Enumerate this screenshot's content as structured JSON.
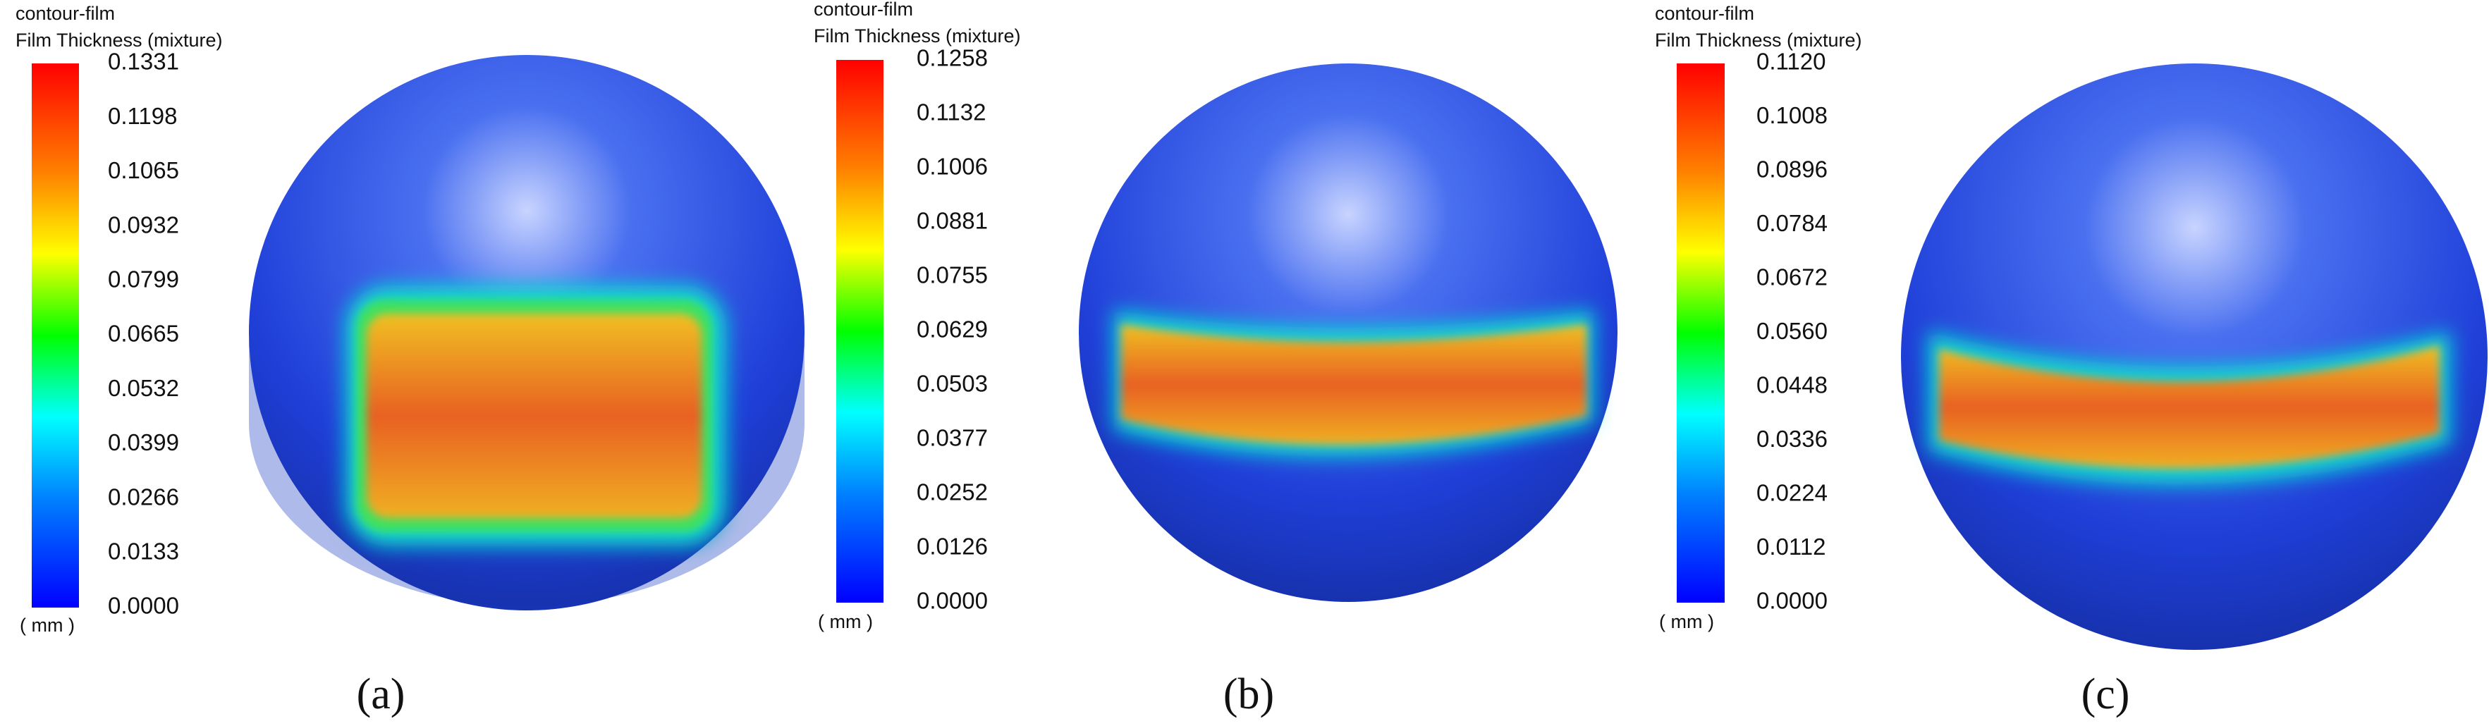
{
  "panels": [
    {
      "title": [
        "contour-film",
        "Film Thickness (mixture)"
      ],
      "ticks": [
        "0.1331",
        "0.1198",
        "0.1065",
        "0.0932",
        "0.0799",
        "0.0665",
        "0.0532",
        "0.0399",
        "0.0266",
        "0.0133",
        "0.0000"
      ],
      "unit": "( mm )",
      "label": "(a)"
    },
    {
      "title": [
        "contour-film",
        "Film Thickness (mixture)"
      ],
      "ticks": [
        "0.1258",
        "0.1132",
        "0.1006",
        "0.0881",
        "0.0755",
        "0.0629",
        "0.0503",
        "0.0377",
        "0.0252",
        "0.0126",
        "0.0000"
      ],
      "unit": "( mm )",
      "label": "(b)"
    },
    {
      "title": [
        "contour-film",
        "Film Thickness (mixture)"
      ],
      "ticks": [
        "0.1120",
        "0.1008",
        "0.0896",
        "0.0784",
        "0.0672",
        "0.0560",
        "0.0448",
        "0.0336",
        "0.0224",
        "0.0112",
        "0.0000"
      ],
      "unit": "( mm )",
      "label": "(c)"
    }
  ]
}
